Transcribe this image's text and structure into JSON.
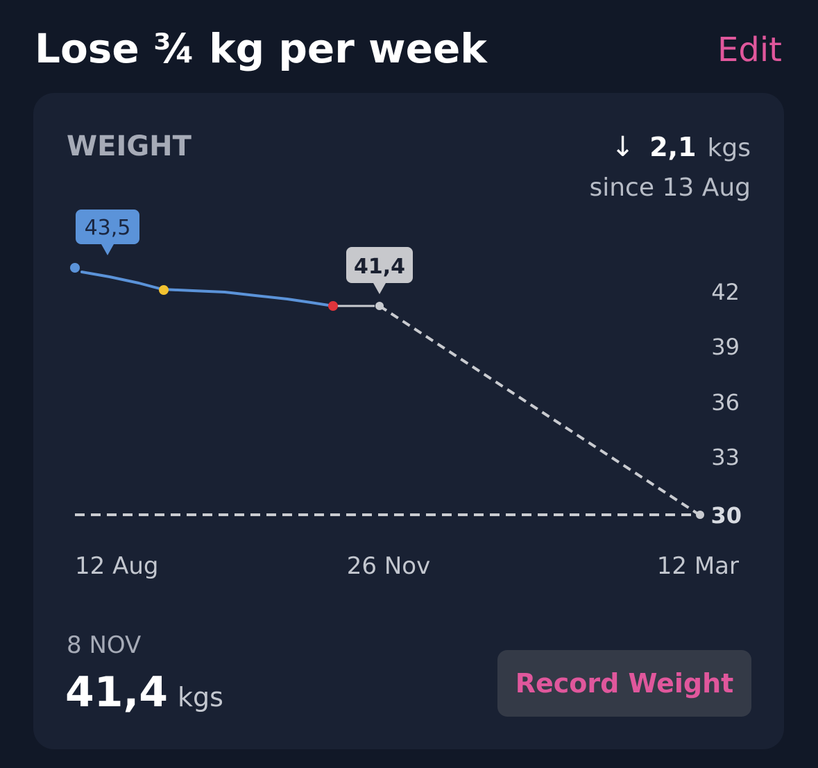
{
  "header": {
    "title": "Lose ¾ kg per week",
    "edit_label": "Edit"
  },
  "card": {
    "label": "WEIGHT",
    "change_arrow": "↓",
    "change_value": "2,1",
    "change_unit": "kgs",
    "since_text": "since 13 Aug"
  },
  "chart_data": {
    "type": "line",
    "x_tick_labels": [
      "12 Aug",
      "26 Nov",
      "12 Mar"
    ],
    "y_tick_labels": [
      "42",
      "39",
      "36",
      "33"
    ],
    "goal_label": "30",
    "goal_value": 30,
    "series": [
      {
        "style": "solid",
        "color": "#5b93d9",
        "points": [
          {
            "x": "12 Aug",
            "y": 43.5
          },
          {
            "x": "~2 Sep",
            "y": 42.3
          },
          {
            "x": "~8 Nov",
            "y": 41.4
          }
        ]
      },
      {
        "style": "projection-dashed",
        "color": "#c9cbd0",
        "points": [
          {
            "x": "~20 Nov",
            "y": 41.4
          },
          {
            "x": "12 Mar",
            "y": 30
          }
        ]
      }
    ],
    "callouts": [
      {
        "label": "43,5",
        "value": 43.5,
        "color": "#5b93d9",
        "text_color": "#1a2640"
      },
      {
        "label": "41,4",
        "value": 41.4,
        "color": "#c7c8cc",
        "text_color": "#1a2030"
      }
    ],
    "marker_colors": {
      "start": "#5b93d9",
      "middle": "#f2c230",
      "latest": "#e0343b",
      "projection": "#c9cbd0"
    },
    "ylim": [
      30,
      43.5
    ],
    "grid": false
  },
  "latest_entry": {
    "date": "8 NOV",
    "value": "41,4",
    "unit": "kgs"
  },
  "actions": {
    "record_label": "Record Weight"
  },
  "colors": {
    "background": "#111827",
    "card": "#192133",
    "accent_pink": "#e0579c",
    "button_bg": "#343a47"
  }
}
